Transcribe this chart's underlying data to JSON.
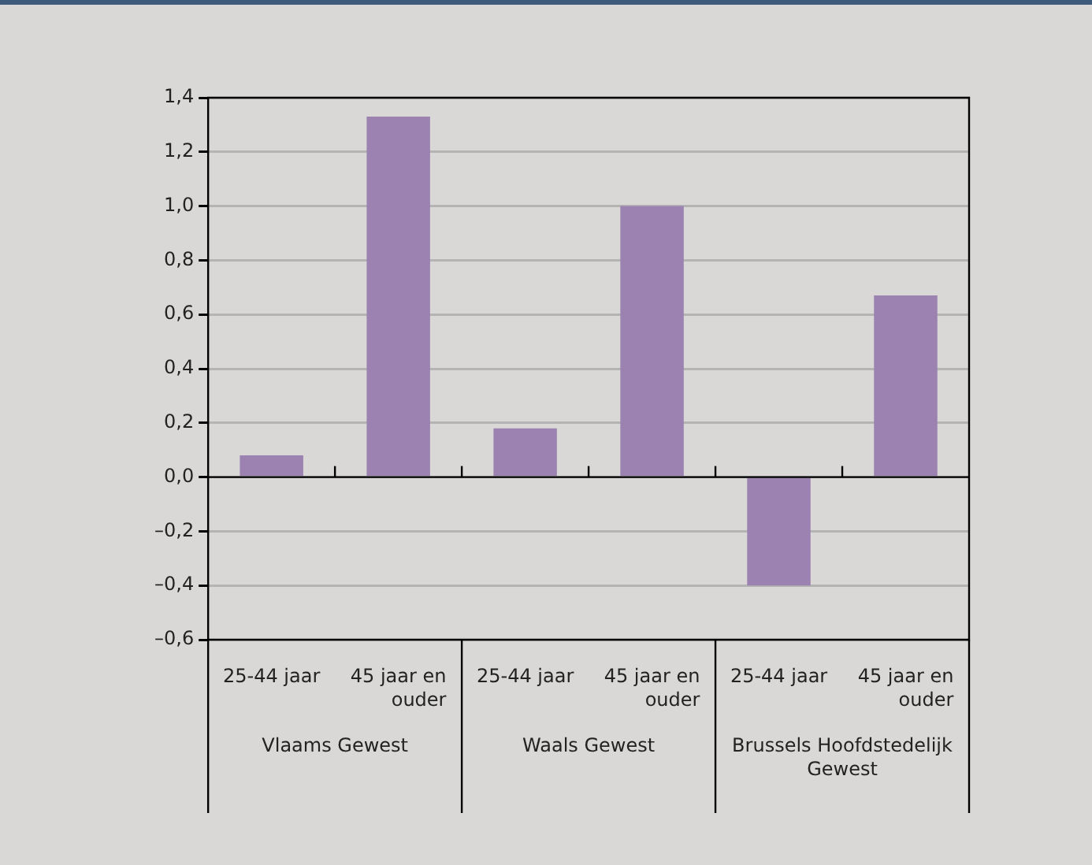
{
  "chart_data": {
    "type": "bar",
    "categories": [
      "25-44 jaar",
      "45 jaar en ouder",
      "25-44 jaar",
      "45 jaar en ouder",
      "25-44 jaar",
      "45 jaar en ouder"
    ],
    "values": [
      0.08,
      1.33,
      0.18,
      1.0,
      -0.4,
      0.67
    ],
    "color": "#9b82b1",
    "ylim": [
      -0.6,
      1.4
    ],
    "yticks": [
      {
        "value": -0.6,
        "label": "–0,6"
      },
      {
        "value": -0.4,
        "label": "–0,4"
      },
      {
        "value": -0.2,
        "label": "–0,2"
      },
      {
        "value": 0,
        "label": "0,0"
      },
      {
        "value": 0.2,
        "label": "0,2"
      },
      {
        "value": 0.4,
        "label": "0,4"
      },
      {
        "value": 0.6,
        "label": "0,6"
      },
      {
        "value": 0.8,
        "label": "0,8"
      },
      {
        "value": 1.0,
        "label": "1,0"
      },
      {
        "value": 1.2,
        "label": "1,2"
      },
      {
        "value": 1.4,
        "label": "1,4"
      }
    ],
    "grid": "y",
    "annotations": [
      "Vlaams Gewest",
      "Waals Gewest",
      "Brussels Hoofdstedelijk Gewest"
    ]
  }
}
